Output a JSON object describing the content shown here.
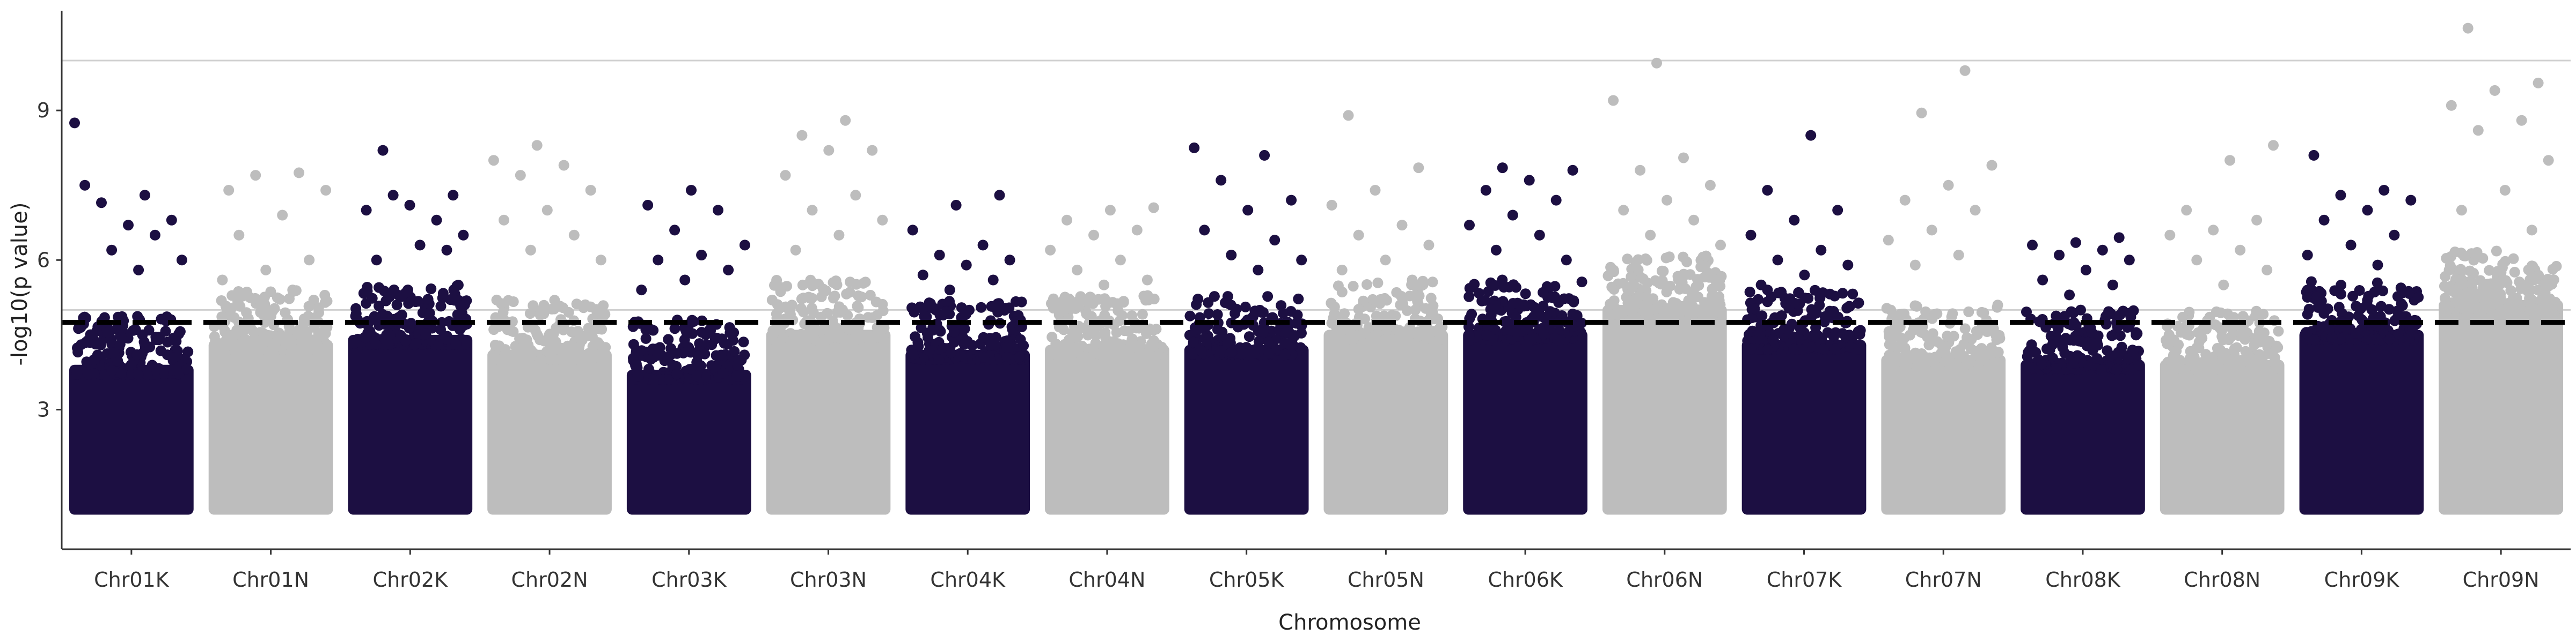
{
  "chart_data": {
    "type": "scatter",
    "subtype": "manhattan",
    "title": "",
    "xlabel": "Chromosome",
    "ylabel": "-log10(p value)",
    "ylim": [
      0.2,
      11.0
    ],
    "yticks": [
      3,
      6,
      9
    ],
    "grid": false,
    "legend": "none",
    "colors": {
      "dark": "#1c0f42",
      "light": "#bdbdbd",
      "threshold_line": "#000000",
      "reference_line": "#d0d0d0",
      "axis": "#333333"
    },
    "threshold": {
      "value": 4.75,
      "style": "dashed"
    },
    "reference_lines": [
      10.0,
      5.0
    ],
    "categories": [
      "Chr01K",
      "Chr01N",
      "Chr02K",
      "Chr02N",
      "Chr03K",
      "Chr03N",
      "Chr04K",
      "Chr04N",
      "Chr05K",
      "Chr05N",
      "Chr06K",
      "Chr06N",
      "Chr07K",
      "Chr07N",
      "Chr08K",
      "Chr08N",
      "Chr09K",
      "Chr09N"
    ],
    "series": [
      {
        "chromosome": "Chr01K",
        "color": "dark",
        "base_max": 4.3,
        "top_points": [
          8.75,
          7.3,
          7.15,
          6.8,
          6.7,
          7.5,
          6.5,
          6.2,
          6.0,
          5.8
        ]
      },
      {
        "chromosome": "Chr01N",
        "color": "light",
        "base_max": 4.8,
        "top_points": [
          7.4,
          7.75,
          7.7,
          7.4,
          6.9,
          6.5,
          6.0,
          5.8,
          5.6,
          5.4
        ]
      },
      {
        "chromosome": "Chr02K",
        "color": "dark",
        "base_max": 4.9,
        "top_points": [
          8.2,
          7.3,
          7.1,
          7.0,
          6.8,
          7.3,
          6.5,
          6.3,
          6.0,
          6.2
        ]
      },
      {
        "chromosome": "Chr02N",
        "color": "light",
        "base_max": 4.6,
        "top_points": [
          8.3,
          8.0,
          7.9,
          7.7,
          7.4,
          7.0,
          6.8,
          6.5,
          6.2,
          6.0
        ]
      },
      {
        "chromosome": "Chr03K",
        "color": "dark",
        "base_max": 4.2,
        "top_points": [
          7.4,
          7.1,
          7.0,
          6.6,
          6.3,
          6.1,
          6.0,
          5.8,
          5.6,
          5.4
        ]
      },
      {
        "chromosome": "Chr03N",
        "color": "light",
        "base_max": 5.0,
        "top_points": [
          8.8,
          8.5,
          8.2,
          8.2,
          7.7,
          7.3,
          7.0,
          6.8,
          6.5,
          6.2
        ]
      },
      {
        "chromosome": "Chr04K",
        "color": "dark",
        "base_max": 4.6,
        "top_points": [
          7.3,
          7.1,
          6.6,
          6.3,
          6.1,
          6.0,
          5.9,
          5.7,
          5.6,
          5.4
        ]
      },
      {
        "chromosome": "Chr04N",
        "color": "light",
        "base_max": 4.7,
        "top_points": [
          7.05,
          7.0,
          6.8,
          6.6,
          6.5,
          6.2,
          6.0,
          5.8,
          5.6,
          5.5
        ]
      },
      {
        "chromosome": "Chr05K",
        "color": "dark",
        "base_max": 4.7,
        "top_points": [
          8.25,
          8.1,
          7.6,
          7.2,
          7.0,
          6.6,
          6.4,
          6.1,
          6.0,
          5.8
        ]
      },
      {
        "chromosome": "Chr05N",
        "color": "light",
        "base_max": 5.0,
        "top_points": [
          8.9,
          7.85,
          7.4,
          7.1,
          6.7,
          6.5,
          6.3,
          6.0,
          5.8,
          5.6
        ]
      },
      {
        "chromosome": "Chr06K",
        "color": "dark",
        "base_max": 5.0,
        "top_points": [
          7.85,
          7.8,
          7.6,
          7.4,
          7.2,
          6.9,
          6.7,
          6.5,
          6.2,
          6.0
        ]
      },
      {
        "chromosome": "Chr06N",
        "color": "light",
        "base_max": 5.5,
        "top_points": [
          9.95,
          9.2,
          8.05,
          7.8,
          7.5,
          7.2,
          7.0,
          6.8,
          6.5,
          6.3
        ]
      },
      {
        "chromosome": "Chr07K",
        "color": "dark",
        "base_max": 4.8,
        "top_points": [
          8.5,
          7.4,
          7.0,
          6.8,
          6.5,
          6.2,
          6.0,
          5.9,
          5.7,
          5.5
        ]
      },
      {
        "chromosome": "Chr07N",
        "color": "light",
        "base_max": 4.5,
        "top_points": [
          9.8,
          8.95,
          7.9,
          7.5,
          7.2,
          7.0,
          6.6,
          6.4,
          6.1,
          5.9
        ]
      },
      {
        "chromosome": "Chr08K",
        "color": "dark",
        "base_max": 4.4,
        "top_points": [
          6.45,
          6.35,
          6.3,
          6.2,
          6.1,
          6.0,
          5.8,
          5.6,
          5.5,
          5.3
        ]
      },
      {
        "chromosome": "Chr08N",
        "color": "light",
        "base_max": 4.4,
        "top_points": [
          8.3,
          8.0,
          7.0,
          6.8,
          6.6,
          6.5,
          6.2,
          6.0,
          5.8,
          5.5
        ]
      },
      {
        "chromosome": "Chr09K",
        "color": "dark",
        "base_max": 5.0,
        "top_points": [
          8.1,
          7.4,
          7.3,
          7.2,
          7.0,
          6.8,
          6.5,
          6.3,
          6.1,
          5.9
        ]
      },
      {
        "chromosome": "Chr09N",
        "color": "light",
        "base_max": 5.6,
        "top_points": [
          10.65,
          9.55,
          9.4,
          9.1,
          8.8,
          8.6,
          8.0,
          7.4,
          7.0,
          6.6
        ]
      }
    ]
  }
}
